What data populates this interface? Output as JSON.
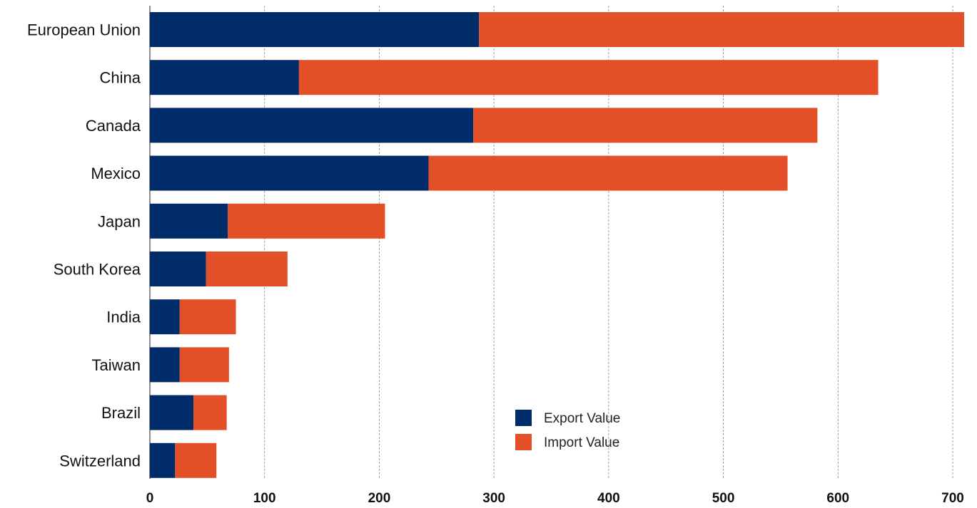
{
  "chart_data": {
    "type": "bar",
    "orientation": "horizontal",
    "stacked": true,
    "title": "",
    "xlabel": "",
    "ylabel": "",
    "categories": [
      "European Union",
      "China",
      "Canada",
      "Mexico",
      "Japan",
      "South Korea",
      "India",
      "Taiwan",
      "Brazil",
      "Switzerland"
    ],
    "series": [
      {
        "name": "Export Value",
        "color": "#002D6A",
        "values": [
          287,
          130,
          282,
          243,
          68,
          49,
          26,
          26,
          38,
          22
        ]
      },
      {
        "name": "Import Value",
        "color": "#E34F26",
        "values": [
          423,
          505,
          300,
          313,
          137,
          71,
          49,
          43,
          29,
          36
        ]
      }
    ],
    "xlim": [
      0,
      700
    ],
    "xticks": [
      "0",
      "100",
      "200",
      "300",
      "400",
      "500",
      "600",
      "700"
    ],
    "grid": "vertical dashed",
    "legend_position": "lower-center-right"
  }
}
